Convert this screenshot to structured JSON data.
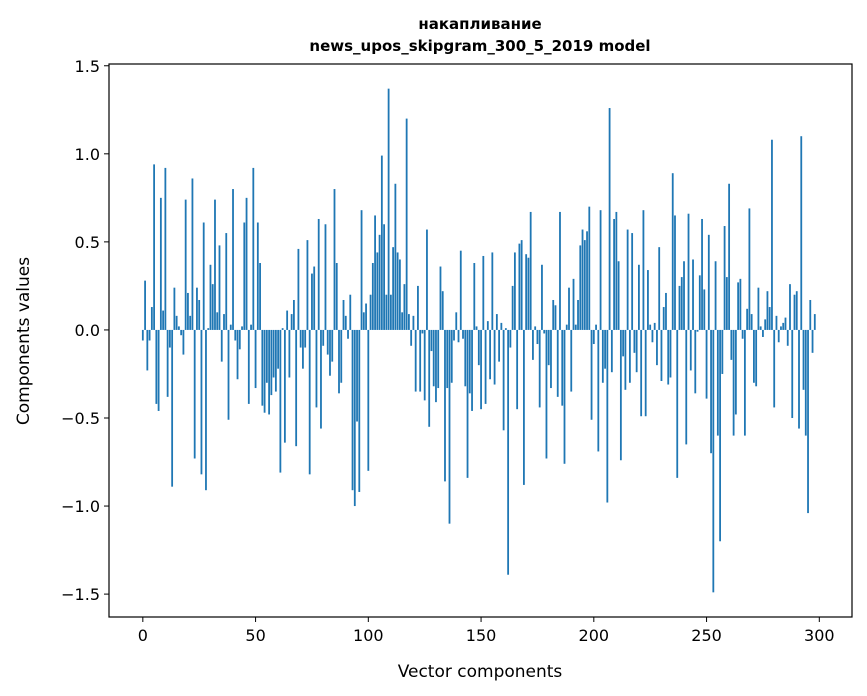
{
  "chart_data": {
    "type": "bar",
    "title_line1": "накапливание",
    "title_line2": "news_upos_skipgram_300_5_2019 model",
    "xlabel": "Vector components",
    "ylabel": "Components values",
    "xlim": [
      -15,
      314.5
    ],
    "ylim": [
      -1.63,
      1.51
    ],
    "xticks": [
      0,
      50,
      100,
      150,
      200,
      250,
      300
    ],
    "xtick_labels": [
      "0",
      "50",
      "100",
      "150",
      "200",
      "250",
      "300"
    ],
    "yticks": [
      -1.5,
      -1.0,
      -0.5,
      0.0,
      0.5,
      1.0,
      1.5
    ],
    "ytick_labels": [
      "−1.5",
      "−1.0",
      "−0.5",
      "0.0",
      "0.5",
      "1.0",
      "1.5"
    ],
    "grid": false,
    "bar_color": "#1f77b4",
    "values": [
      -0.06,
      0.28,
      -0.23,
      -0.06,
      0.13,
      0.94,
      -0.42,
      -0.46,
      0.75,
      0.11,
      0.92,
      -0.38,
      -0.1,
      -0.89,
      0.24,
      0.08,
      0.02,
      -0.03,
      -0.14,
      0.74,
      0.21,
      0.08,
      0.86,
      -0.73,
      0.24,
      0.17,
      -0.82,
      0.61,
      -0.91,
      0.01,
      0.37,
      0.26,
      0.74,
      0.1,
      0.48,
      -0.18,
      0.09,
      0.55,
      -0.51,
      0.03,
      0.8,
      -0.06,
      -0.28,
      -0.11,
      0.02,
      0.61,
      0.75,
      -0.42,
      0.03,
      0.92,
      -0.33,
      0.61,
      0.38,
      -0.43,
      -0.47,
      -0.3,
      -0.48,
      -0.37,
      -0.27,
      -0.35,
      -0.22,
      -0.81,
      0.01,
      -0.64,
      0.11,
      -0.27,
      0.09,
      0.17,
      -0.66,
      0.46,
      -0.1,
      -0.22,
      -0.1,
      0.51,
      -0.82,
      0.32,
      0.36,
      -0.44,
      0.63,
      -0.56,
      -0.09,
      0.6,
      -0.14,
      -0.26,
      -0.18,
      0.8,
      0.38,
      -0.36,
      -0.3,
      0.17,
      0.08,
      -0.05,
      0.2,
      -0.91,
      -1.0,
      -0.52,
      -0.92,
      0.68,
      0.1,
      0.15,
      -0.8,
      0.2,
      0.38,
      0.65,
      0.44,
      0.54,
      0.99,
      0.6,
      0.2,
      1.37,
      0.2,
      0.47,
      0.83,
      0.44,
      0.4,
      0.1,
      0.26,
      1.2,
      0.09,
      -0.09,
      0.08,
      -0.35,
      0.25,
      -0.35,
      -0.02,
      -0.4,
      0.57,
      -0.55,
      -0.12,
      -0.32,
      -0.41,
      -0.33,
      0.36,
      0.22,
      -0.86,
      -0.33,
      -1.1,
      -0.3,
      -0.06,
      0.1,
      -0.07,
      0.45,
      -0.05,
      -0.32,
      -0.84,
      -0.36,
      -0.46,
      0.38,
      0.02,
      -0.2,
      -0.45,
      0.42,
      -0.42,
      0.05,
      -0.28,
      0.44,
      -0.31,
      0.09,
      -0.18,
      0.04,
      -0.57,
      0.01,
      -1.39,
      -0.1,
      0.25,
      0.44,
      -0.45,
      0.49,
      0.51,
      -0.88,
      0.43,
      0.41,
      0.67,
      -0.17,
      0.02,
      -0.08,
      -0.44,
      0.37,
      -0.02,
      -0.73,
      -0.2,
      -0.33,
      0.17,
      0.14,
      -0.38,
      0.67,
      -0.43,
      -0.76,
      0.03,
      0.24,
      -0.35,
      0.29,
      0.03,
      0.17,
      0.48,
      0.57,
      0.51,
      0.56,
      0.7,
      -0.51,
      -0.08,
      0.03,
      -0.69,
      0.68,
      -0.3,
      -0.22,
      -0.98,
      1.26,
      -0.24,
      0.63,
      0.67,
      0.39,
      -0.74,
      -0.15,
      -0.34,
      0.57,
      -0.3,
      0.55,
      -0.13,
      -0.24,
      0.37,
      -0.49,
      0.68,
      -0.49,
      0.34,
      0.03,
      -0.07,
      0.04,
      -0.2,
      0.47,
      -0.29,
      0.13,
      0.21,
      -0.31,
      -0.27,
      0.89,
      0.65,
      -0.84,
      0.25,
      0.3,
      0.39,
      -0.65,
      0.66,
      -0.23,
      0.4,
      -0.36,
      -0.01,
      0.31,
      0.63,
      0.23,
      -0.39,
      0.54,
      -0.7,
      -1.49,
      0.39,
      -0.6,
      -1.2,
      -0.25,
      0.59,
      0.3,
      0.83,
      -0.17,
      -0.6,
      -0.48,
      0.27,
      0.29,
      -0.05,
      -0.6,
      0.12,
      0.69,
      0.09,
      -0.3,
      -0.32,
      0.24,
      0.02,
      -0.04,
      0.06,
      0.22,
      0.13,
      1.08,
      -0.44,
      0.08,
      -0.07,
      0.02,
      0.04,
      0.07,
      -0.09,
      0.26,
      -0.5,
      0.2,
      0.22,
      -0.56,
      1.1,
      -0.34,
      -0.6,
      -1.04,
      0.17,
      -0.13,
      0.09,
      0.0
    ]
  }
}
